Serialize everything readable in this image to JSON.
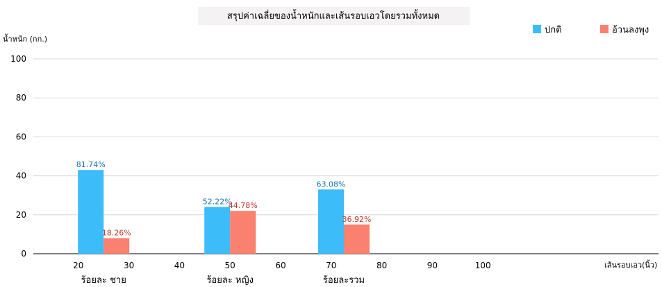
{
  "chart_data": {
    "type": "bar",
    "title": "สรุปค่าเฉลี่ยของน้ำหนักและเส้นรอบเอวโดยรวมทั้งหมด",
    "ylabel": "น้ำหนัก (กก.)",
    "xlabel": "เส้นรอบเอว(นิ้ว)",
    "ylim": [
      0,
      100
    ],
    "yticks": [
      0,
      20,
      40,
      60,
      80,
      100
    ],
    "xlim": [
      10,
      110
    ],
    "xticks": [
      20,
      30,
      40,
      50,
      60,
      70,
      80,
      90,
      100
    ],
    "grid": true,
    "legend_position": "top-right",
    "categories": [
      "ร้อยละ ชาย",
      "ร้อยละ หญิง",
      "ร้อยละรวม"
    ],
    "category_x": [
      25,
      50,
      72.5
    ],
    "series": [
      {
        "name": "ปกติ",
        "color": "#3dbcfa",
        "label_color": "#1a6fb0",
        "values": [
          43,
          24,
          33
        ],
        "labels": [
          "81.74%",
          "52.22%",
          "63.08%"
        ]
      },
      {
        "name": "อ้วนลงพุง",
        "color": "#fa8070",
        "label_color": "#c0392b",
        "values": [
          8,
          22,
          15
        ],
        "labels": [
          "18.26%",
          "44.78%",
          "36.92%"
        ]
      }
    ]
  }
}
